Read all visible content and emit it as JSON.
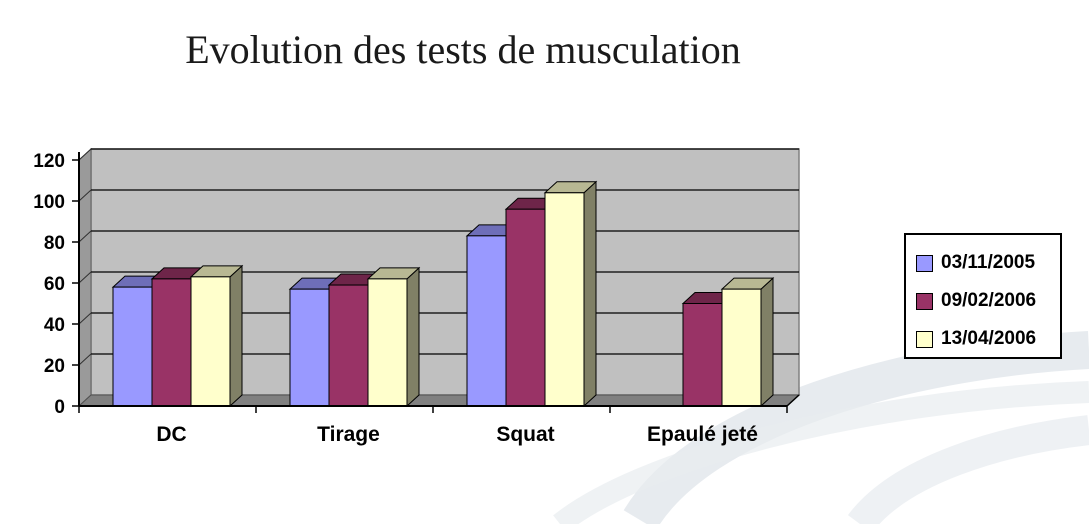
{
  "slide": {
    "title": "Evolution des tests de musculation"
  },
  "colors": {
    "wall": "#c0c0c0",
    "floor": "#808080",
    "gridline": "#000000",
    "swoosh": "#dfe4ea"
  },
  "chart_data": {
    "type": "bar",
    "title": "",
    "xlabel": "",
    "ylabel": "",
    "ylim": [
      0,
      120
    ],
    "yticks": [
      0,
      20,
      40,
      60,
      80,
      100,
      120
    ],
    "grid": true,
    "legend_position": "right",
    "categories": [
      "DC",
      "Tirage",
      "Squat",
      "Epaulé jeté"
    ],
    "series": [
      {
        "name": "03/11/2005",
        "color": "#9999ff",
        "values": [
          58,
          57,
          83,
          null
        ]
      },
      {
        "name": "09/02/2006",
        "color": "#993366",
        "values": [
          62,
          59,
          96,
          50
        ]
      },
      {
        "name": "13/04/2006",
        "color": "#ffffcc",
        "values": [
          63,
          62,
          104,
          57
        ]
      }
    ]
  }
}
